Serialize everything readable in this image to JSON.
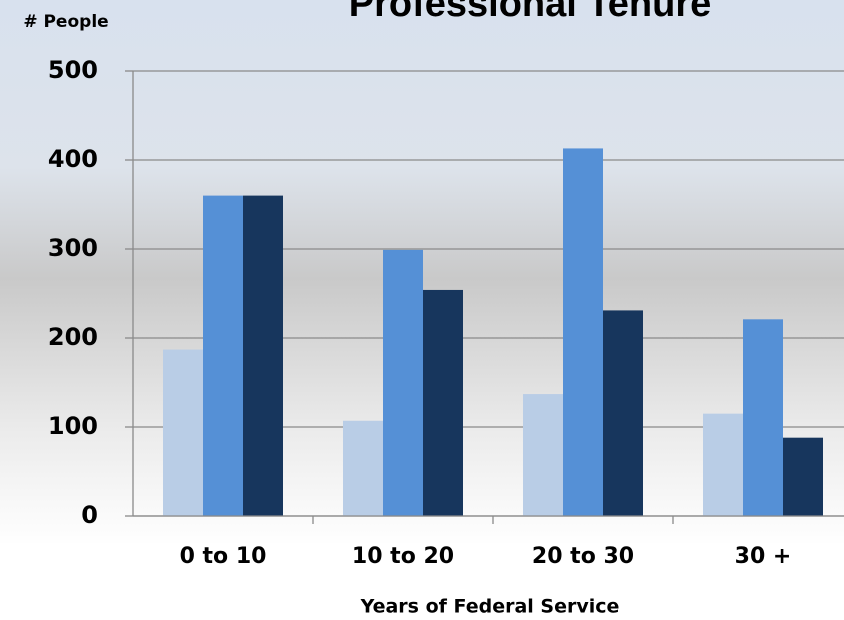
{
  "chart_data": {
    "type": "bar",
    "title": "Professional Tenure",
    "y_label": "# People",
    "x_label": "Years of Federal Service",
    "categories": [
      "0 to 10",
      "10 to 20",
      "20 to 30",
      "30 +"
    ],
    "series": [
      {
        "color": "#b9cde6",
        "values": [
          187,
          107,
          137,
          115
        ]
      },
      {
        "color": "#5590d6",
        "values": [
          360,
          299,
          413,
          221
        ]
      },
      {
        "color": "#17365d",
        "values": [
          360,
          254,
          231,
          88
        ]
      }
    ],
    "ylim": [
      0,
      500
    ],
    "yticks": [
      0,
      100,
      200,
      300,
      400,
      500
    ],
    "grid": true
  }
}
